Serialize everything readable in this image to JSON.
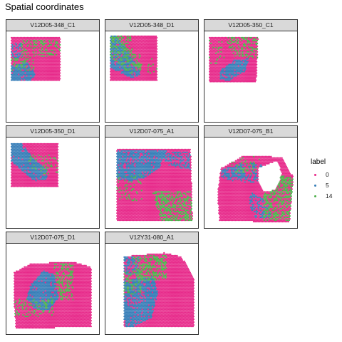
{
  "chart_data": {
    "type": "scatter",
    "title": "Spatial coordinates",
    "legend": {
      "title": "label",
      "placement": "right",
      "entries": [
        {
          "name": "0",
          "color": "#e7298a"
        },
        {
          "name": "5",
          "color": "#377eb8"
        },
        {
          "name": "14",
          "color": "#4daf4a"
        }
      ]
    },
    "grid": false,
    "facets": [
      {
        "label": "V12D05-348_C1",
        "tissue": [
          [
            0.05,
            0.06
          ],
          [
            0.58,
            0.06
          ],
          [
            0.58,
            0.54
          ],
          [
            0.05,
            0.54
          ]
        ],
        "regions": [
          {
            "label": "5",
            "shape": [
              [
                0.05,
                0.38
              ],
              [
                0.22,
                0.34
              ],
              [
                0.32,
                0.48
              ],
              [
                0.26,
                0.54
              ],
              [
                0.05,
                0.54
              ]
            ],
            "density": 0.85
          },
          {
            "label": "5",
            "shape": [
              [
                0.05,
                0.12
              ],
              [
                0.16,
                0.12
              ],
              [
                0.18,
                0.3
              ],
              [
                0.05,
                0.3
              ]
            ],
            "density": 0.5
          },
          {
            "label": "14",
            "shape": [
              [
                0.16,
                0.1
              ],
              [
                0.58,
                0.1
              ],
              [
                0.58,
                0.26
              ],
              [
                0.16,
                0.3
              ]
            ],
            "density": 0.35
          },
          {
            "label": "14",
            "shape": [
              [
                0.05,
                0.3
              ],
              [
                0.3,
                0.28
              ],
              [
                0.3,
                0.44
              ],
              [
                0.05,
                0.44
              ]
            ],
            "density": 0.25
          }
        ]
      },
      {
        "label": "V12D05-348_D1",
        "tissue": [
          [
            0.05,
            0.05
          ],
          [
            0.56,
            0.05
          ],
          [
            0.56,
            0.55
          ],
          [
            0.05,
            0.55
          ]
        ],
        "regions": [
          {
            "label": "5",
            "shape": [
              [
                0.05,
                0.05
              ],
              [
                0.12,
                0.05
              ],
              [
                0.26,
                0.25
              ],
              [
                0.34,
                0.36
              ],
              [
                0.38,
                0.48
              ],
              [
                0.28,
                0.52
              ],
              [
                0.05,
                0.4
              ]
            ],
            "density": 0.85
          },
          {
            "label": "14",
            "shape": [
              [
                0.05,
                0.05
              ],
              [
                0.28,
                0.05
              ],
              [
                0.3,
                0.22
              ],
              [
                0.4,
                0.4
              ],
              [
                0.28,
                0.48
              ],
              [
                0.05,
                0.3
              ]
            ],
            "density": 0.4
          },
          {
            "label": "14",
            "shape": [
              [
                0.28,
                0.22
              ],
              [
                0.56,
                0.32
              ],
              [
                0.56,
                0.48
              ],
              [
                0.3,
                0.42
              ]
            ],
            "density": 0.15
          }
        ]
      },
      {
        "label": "V12D05-350_C1",
        "tissue": [
          [
            0.05,
            0.06
          ],
          [
            0.58,
            0.06
          ],
          [
            0.56,
            0.56
          ],
          [
            0.05,
            0.56
          ]
        ],
        "regions": [
          {
            "label": "5",
            "shape": [
              [
                0.18,
                0.42
              ],
              [
                0.32,
                0.32
              ],
              [
                0.48,
                0.3
              ],
              [
                0.44,
                0.44
              ],
              [
                0.26,
                0.55
              ],
              [
                0.16,
                0.52
              ]
            ],
            "density": 0.85
          },
          {
            "label": "14",
            "shape": [
              [
                0.22,
                0.06
              ],
              [
                0.58,
                0.06
              ],
              [
                0.58,
                0.3
              ],
              [
                0.3,
                0.28
              ]
            ],
            "density": 0.35
          },
          {
            "label": "14",
            "shape": [
              [
                0.05,
                0.1
              ],
              [
                0.22,
                0.1
              ],
              [
                0.22,
                0.36
              ],
              [
                0.05,
                0.36
              ]
            ],
            "density": 0.12
          }
        ]
      },
      {
        "label": "V12D05-350_D1",
        "tissue": [
          [
            0.05,
            0.06
          ],
          [
            0.56,
            0.06
          ],
          [
            0.56,
            0.55
          ],
          [
            0.05,
            0.55
          ]
        ],
        "regions": [
          {
            "label": "5",
            "shape": [
              [
                0.05,
                0.06
              ],
              [
                0.16,
                0.06
              ],
              [
                0.3,
                0.24
              ],
              [
                0.44,
                0.36
              ],
              [
                0.44,
                0.46
              ],
              [
                0.3,
                0.48
              ],
              [
                0.05,
                0.26
              ]
            ],
            "density": 0.9
          },
          {
            "label": "14",
            "shape": [
              [
                0.2,
                0.2
              ],
              [
                0.56,
                0.18
              ],
              [
                0.56,
                0.4
              ],
              [
                0.3,
                0.4
              ]
            ],
            "density": 0.2
          }
        ]
      },
      {
        "label": "V12D07-075_A1",
        "tissue": [
          [
            0.12,
            0.12
          ],
          [
            0.92,
            0.12
          ],
          [
            0.94,
            0.92
          ],
          [
            0.12,
            0.92
          ]
        ],
        "regions": [
          {
            "label": "5",
            "shape": [
              [
                0.12,
                0.14
              ],
              [
                0.66,
                0.14
              ],
              [
                0.58,
                0.34
              ],
              [
                0.44,
                0.44
              ],
              [
                0.28,
                0.48
              ],
              [
                0.12,
                0.46
              ]
            ],
            "density": 0.85
          },
          {
            "label": "5",
            "shape": [
              [
                0.56,
                0.16
              ],
              [
                0.92,
                0.16
              ],
              [
                0.92,
                0.36
              ],
              [
                0.7,
                0.32
              ]
            ],
            "density": 0.5
          },
          {
            "label": "14",
            "shape": [
              [
                0.5,
                0.6
              ],
              [
                0.94,
                0.6
              ],
              [
                0.94,
                0.92
              ],
              [
                0.6,
                0.92
              ]
            ],
            "density": 0.55
          },
          {
            "label": "14",
            "shape": [
              [
                0.12,
                0.4
              ],
              [
                0.4,
                0.4
              ],
              [
                0.4,
                0.7
              ],
              [
                0.12,
                0.7
              ]
            ],
            "density": 0.12
          }
        ]
      },
      {
        "label": "V12D07-075_B1",
        "tissue": [
          [
            0.18,
            0.34
          ],
          [
            0.42,
            0.2
          ],
          [
            0.6,
            0.2
          ],
          [
            0.84,
            0.22
          ],
          [
            0.96,
            0.44
          ],
          [
            0.92,
            0.94
          ],
          [
            0.16,
            0.92
          ],
          [
            0.14,
            0.6
          ]
        ],
        "holes": [
          [
            [
              0.58,
              0.34
            ],
            [
              0.78,
              0.26
            ],
            [
              0.84,
              0.4
            ],
            [
              0.76,
              0.58
            ],
            [
              0.64,
              0.6
            ],
            [
              0.58,
              0.48
            ]
          ]
        ],
        "regions": [
          {
            "label": "5",
            "shape": [
              [
                0.18,
                0.36
              ],
              [
                0.4,
                0.28
              ],
              [
                0.44,
                0.44
              ],
              [
                0.3,
                0.48
              ],
              [
                0.18,
                0.44
              ]
            ],
            "density": 0.8
          },
          {
            "label": "5",
            "shape": [
              [
                0.5,
                0.6
              ],
              [
                0.7,
                0.72
              ],
              [
                0.72,
                0.88
              ],
              [
                0.56,
                0.9
              ],
              [
                0.48,
                0.76
              ]
            ],
            "density": 0.45
          },
          {
            "label": "5",
            "shape": [
              [
                0.34,
                0.3
              ],
              [
                0.62,
                0.28
              ],
              [
                0.62,
                0.5
              ],
              [
                0.38,
                0.5
              ]
            ],
            "density": 0.3
          },
          {
            "label": "14",
            "shape": [
              [
                0.64,
                0.4
              ],
              [
                0.96,
                0.44
              ],
              [
                0.92,
                0.92
              ],
              [
                0.64,
                0.92
              ]
            ],
            "density": 0.55
          },
          {
            "label": "14",
            "shape": [
              [
                0.26,
                0.2
              ],
              [
                0.62,
                0.2
              ],
              [
                0.62,
                0.4
              ],
              [
                0.26,
                0.4
              ]
            ],
            "density": 0.2
          }
        ]
      },
      {
        "label": "V12D07-075_D1",
        "tissue": [
          [
            0.08,
            0.32
          ],
          [
            0.26,
            0.22
          ],
          [
            0.72,
            0.2
          ],
          [
            0.92,
            0.26
          ],
          [
            0.92,
            0.92
          ],
          [
            0.1,
            0.94
          ],
          [
            0.08,
            0.6
          ]
        ],
        "regions": [
          {
            "label": "5",
            "shape": [
              [
                0.26,
                0.46
              ],
              [
                0.4,
                0.3
              ],
              [
                0.52,
                0.34
              ],
              [
                0.56,
                0.6
              ],
              [
                0.46,
                0.74
              ],
              [
                0.3,
                0.72
              ],
              [
                0.22,
                0.6
              ]
            ],
            "density": 0.9
          },
          {
            "label": "14",
            "shape": [
              [
                0.5,
                0.22
              ],
              [
                0.72,
                0.22
              ],
              [
                0.72,
                0.62
              ],
              [
                0.56,
                0.62
              ]
            ],
            "density": 0.4
          },
          {
            "label": "14",
            "shape": [
              [
                0.08,
                0.62
              ],
              [
                0.5,
                0.6
              ],
              [
                0.52,
                0.8
              ],
              [
                0.08,
                0.82
              ]
            ],
            "density": 0.3
          }
        ]
      },
      {
        "label": "V12Y31-080_A1",
        "tissue": [
          [
            0.2,
            0.14
          ],
          [
            0.64,
            0.1
          ],
          [
            0.82,
            0.14
          ],
          [
            0.96,
            0.38
          ],
          [
            0.96,
            0.92
          ],
          [
            0.2,
            0.92
          ]
        ],
        "regions": [
          {
            "label": "5",
            "shape": [
              [
                0.2,
                0.4
              ],
              [
                0.5,
                0.36
              ],
              [
                0.58,
                0.5
              ],
              [
                0.5,
                0.82
              ],
              [
                0.3,
                0.92
              ],
              [
                0.2,
                0.92
              ]
            ],
            "density": 0.85
          },
          {
            "label": "5",
            "shape": [
              [
                0.2,
                0.14
              ],
              [
                0.36,
                0.14
              ],
              [
                0.38,
                0.34
              ],
              [
                0.2,
                0.36
              ]
            ],
            "density": 0.6
          },
          {
            "label": "14",
            "shape": [
              [
                0.3,
                0.14
              ],
              [
                0.66,
                0.12
              ],
              [
                0.66,
                0.4
              ],
              [
                0.34,
                0.42
              ]
            ],
            "density": 0.5
          },
          {
            "label": "14",
            "shape": [
              [
                0.2,
                0.3
              ],
              [
                0.4,
                0.3
              ],
              [
                0.4,
                0.56
              ],
              [
                0.2,
                0.56
              ]
            ],
            "density": 0.25
          }
        ]
      }
    ]
  }
}
